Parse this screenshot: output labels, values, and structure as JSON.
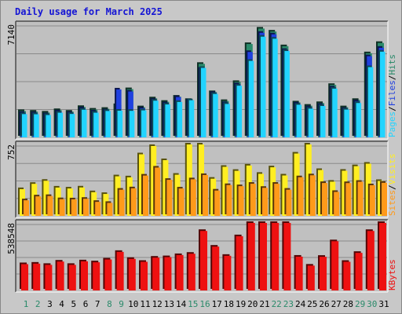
{
  "title": "Daily usage for March 2025",
  "colors": {
    "pages": "#22d4ff",
    "files": "#2040e0",
    "hits": "#2a8a6a",
    "sites": "#ff9a1a",
    "visits": "#ffee22",
    "kbytes": "#ee1111",
    "weekend_label": "#2a8a6a",
    "weekday_label": "#000000",
    "panel_bg": "#c0c0c0"
  },
  "chart_data": [
    {
      "type": "bar",
      "panel": "hits-files-pages",
      "axis_max_label": "7140",
      "ymax": 7140,
      "categories": [
        "1",
        "2",
        "3",
        "4",
        "5",
        "6",
        "7",
        "8",
        "9",
        "10",
        "11",
        "12",
        "13",
        "14",
        "15",
        "16",
        "17",
        "18",
        "19",
        "20",
        "21",
        "22",
        "23",
        "24",
        "25",
        "26",
        "27",
        "28",
        "29",
        "30",
        "31"
      ],
      "weekend_days": [
        "1",
        "2",
        "8",
        "9",
        "15",
        "16",
        "22",
        "23",
        "29",
        "30"
      ],
      "series": [
        {
          "name": "Hits",
          "values": [
            1690,
            1650,
            1590,
            1750,
            1650,
            1950,
            1780,
            1830,
            2070,
            3090,
            1930,
            2500,
            2280,
            2610,
            2400,
            4710,
            2900,
            2330,
            3550,
            5980,
            6970,
            6780,
            5840,
            2240,
            2030,
            2200,
            3360,
            1930,
            2400,
            5390,
            6050
          ]
        },
        {
          "name": "Files",
          "values": [
            1570,
            1550,
            1480,
            1660,
            1570,
            1860,
            1660,
            1730,
            3070,
            2940,
            1860,
            2410,
            2180,
            2580,
            2370,
            4400,
            2850,
            2200,
            3400,
            5470,
            6700,
            6600,
            5600,
            2170,
            1930,
            2090,
            3200,
            1830,
            2310,
            5200,
            5740
          ]
        },
        {
          "name": "Pages",
          "values": [
            1490,
            1480,
            1430,
            1580,
            1500,
            1770,
            1580,
            1690,
            1710,
            1700,
            1730,
            2350,
            2110,
            2270,
            2380,
            4450,
            2780,
            2140,
            3310,
            4900,
            6450,
            6320,
            5530,
            2090,
            1840,
            2010,
            3120,
            1780,
            2200,
            4500,
            5490
          ]
        }
      ],
      "right_labels": [
        "Pages",
        "/",
        "Files",
        "/",
        "Hits"
      ]
    },
    {
      "type": "bar",
      "panel": "visits-sites",
      "axis_max_label": "752",
      "ymax": 752,
      "categories": [
        "1",
        "2",
        "3",
        "4",
        "5",
        "6",
        "7",
        "8",
        "9",
        "10",
        "11",
        "12",
        "13",
        "14",
        "15",
        "16",
        "17",
        "18",
        "19",
        "20",
        "21",
        "22",
        "23",
        "24",
        "25",
        "26",
        "27",
        "28",
        "29",
        "30",
        "31"
      ],
      "series": [
        {
          "name": "Visits",
          "values": [
            288,
            345,
            378,
            305,
            295,
            306,
            255,
            236,
            426,
            415,
            663,
            752,
            600,
            443,
            791,
            893,
            400,
            528,
            485,
            542,
            453,
            523,
            435,
            671,
            828,
            494,
            368,
            486,
            535,
            562,
            376
          ]
        },
        {
          "name": "Sites",
          "values": [
            168,
            210,
            214,
            180,
            178,
            184,
            151,
            140,
            282,
            297,
            434,
            520,
            388,
            295,
            394,
            440,
            273,
            332,
            320,
            346,
            302,
            346,
            282,
            416,
            437,
            354,
            258,
            353,
            367,
            330,
            356
          ]
        }
      ],
      "right_labels": [
        "Sites",
        "/",
        "Visits"
      ]
    },
    {
      "type": "bar",
      "panel": "kbytes",
      "axis_max_label": "538548",
      "ymax": 538548,
      "categories": [
        "1",
        "2",
        "3",
        "4",
        "5",
        "6",
        "7",
        "8",
        "9",
        "10",
        "11",
        "12",
        "13",
        "14",
        "15",
        "16",
        "17",
        "18",
        "19",
        "20",
        "21",
        "22",
        "23",
        "24",
        "25",
        "26",
        "27",
        "28",
        "29",
        "30",
        "31"
      ],
      "series": [
        {
          "name": "KBytes",
          "values": [
            215000,
            219000,
            209000,
            236000,
            209000,
            238000,
            230000,
            253000,
            315000,
            258000,
            234000,
            268000,
            272000,
            289000,
            300000,
            486000,
            358000,
            283000,
            443000,
            585000,
            806000,
            806000,
            667000,
            276000,
            203000,
            275000,
            402000,
            234000,
            307000,
            486000,
            636000
          ]
        }
      ],
      "right_labels": [
        "KBytes"
      ]
    }
  ]
}
